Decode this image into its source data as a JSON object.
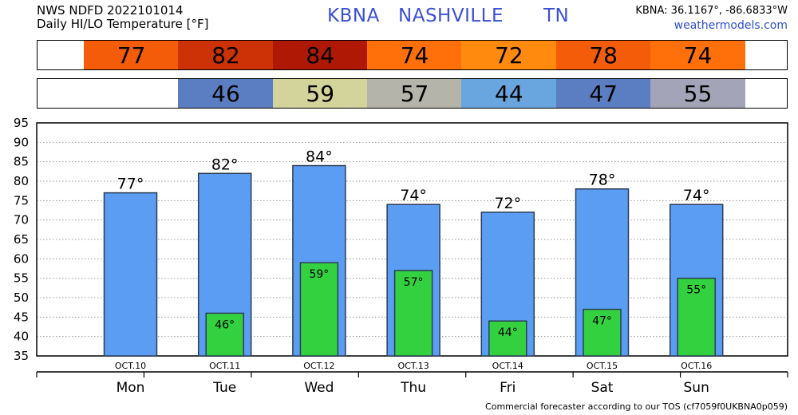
{
  "header": {
    "line1": "NWS NDFD 2022101014",
    "line2": "Daily HI/LO Temperature [°F]",
    "station_id": "KBNA",
    "city": "NASHVILLE",
    "state": "TN",
    "coords": "KBNA: 36.1167°, -86.6833°W",
    "site": "weathermodels.com"
  },
  "footer": "Commercial forecaster according to our TOS (cf7059f0UKBNA0p059)",
  "hi_strip": [
    {
      "value": "77",
      "color": "#f55c0a"
    },
    {
      "value": "82",
      "color": "#cc3206"
    },
    {
      "value": "84",
      "color": "#b01806"
    },
    {
      "value": "74",
      "color": "#ff700a"
    },
    {
      "value": "72",
      "color": "#ff8a0e"
    },
    {
      "value": "78",
      "color": "#f55c0a"
    },
    {
      "value": "74",
      "color": "#ff700a"
    }
  ],
  "lo_strip": [
    {
      "value": "",
      "color": "#ffffff"
    },
    {
      "value": "46",
      "color": "#5b7ec2"
    },
    {
      "value": "59",
      "color": "#d2d49c"
    },
    {
      "value": "57",
      "color": "#b4b4aa"
    },
    {
      "value": "44",
      "color": "#69a5de"
    },
    {
      "value": "47",
      "color": "#5b7ec2"
    },
    {
      "value": "55",
      "color": "#a4a4b8"
    }
  ],
  "colors": {
    "hi_bar": "#5a9df2",
    "lo_bar": "#33d13f",
    "grid": "#999999"
  },
  "chart_data": {
    "type": "bar",
    "categories": [
      "Mon",
      "Tue",
      "Wed",
      "Thu",
      "Fri",
      "Sat",
      "Sun"
    ],
    "dates": [
      "OCT.10",
      "OCT.11",
      "OCT.12",
      "OCT.13",
      "OCT.14",
      "OCT.15",
      "OCT.16"
    ],
    "series": [
      {
        "values": [
          77,
          82,
          84,
          74,
          72,
          78,
          74
        ],
        "labels": [
          "77°",
          "82°",
          "84°",
          "74°",
          "72°",
          "78°",
          "74°"
        ]
      },
      {
        "values": [
          null,
          46,
          59,
          57,
          44,
          47,
          55
        ],
        "labels": [
          "",
          "46°",
          "59°",
          "57°",
          "44°",
          "47°",
          "55°"
        ]
      }
    ],
    "yticks": [
      35,
      40,
      45,
      50,
      55,
      60,
      65,
      70,
      75,
      80,
      85,
      90,
      95
    ],
    "ylim": [
      35,
      95
    ],
    "grid": true
  }
}
